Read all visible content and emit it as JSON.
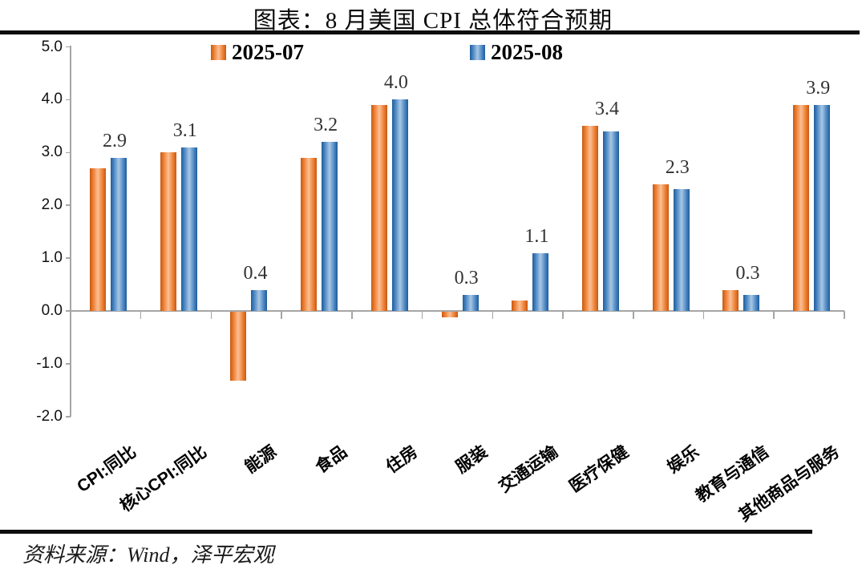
{
  "title": "图表：8 月美国 CPI 总体符合预期",
  "source": "资料来源：Wind，泽平宏观",
  "chart_data": {
    "type": "bar",
    "title": "图表：8 月美国 CPI 总体符合预期",
    "xlabel": "",
    "ylabel": "",
    "categories": [
      "CPI:同比",
      "核心CPI:同比",
      "能源",
      "食品",
      "住房",
      "服装",
      "交通运输",
      "医疗保健",
      "娱乐",
      "教育与通信",
      "其他商品与服务"
    ],
    "series": [
      {
        "name": "2025-07",
        "color": "#ED7D31",
        "values": [
          2.7,
          3.0,
          -1.3,
          2.9,
          3.9,
          -0.1,
          0.2,
          3.5,
          2.4,
          0.4,
          3.9
        ]
      },
      {
        "name": "2025-08",
        "color": "#4A86C2",
        "values": [
          2.9,
          3.1,
          0.4,
          3.2,
          4.0,
          0.3,
          1.1,
          3.4,
          2.3,
          0.3,
          3.9
        ]
      }
    ],
    "data_labels_series": "2025-08",
    "data_labels": [
      "2.9",
      "3.1",
      "0.4",
      "3.2",
      "4.0",
      "0.3",
      "1.1",
      "3.4",
      "2.3",
      "0.3",
      "3.9"
    ],
    "yticks": [
      "5.0",
      "4.0",
      "3.0",
      "2.0",
      "1.0",
      "0.0",
      "-1.0",
      "-2.0"
    ],
    "ylim": [
      -2.0,
      5.0
    ],
    "grid": false,
    "legend_position": "top",
    "axis_color": "#A6A6A6"
  }
}
